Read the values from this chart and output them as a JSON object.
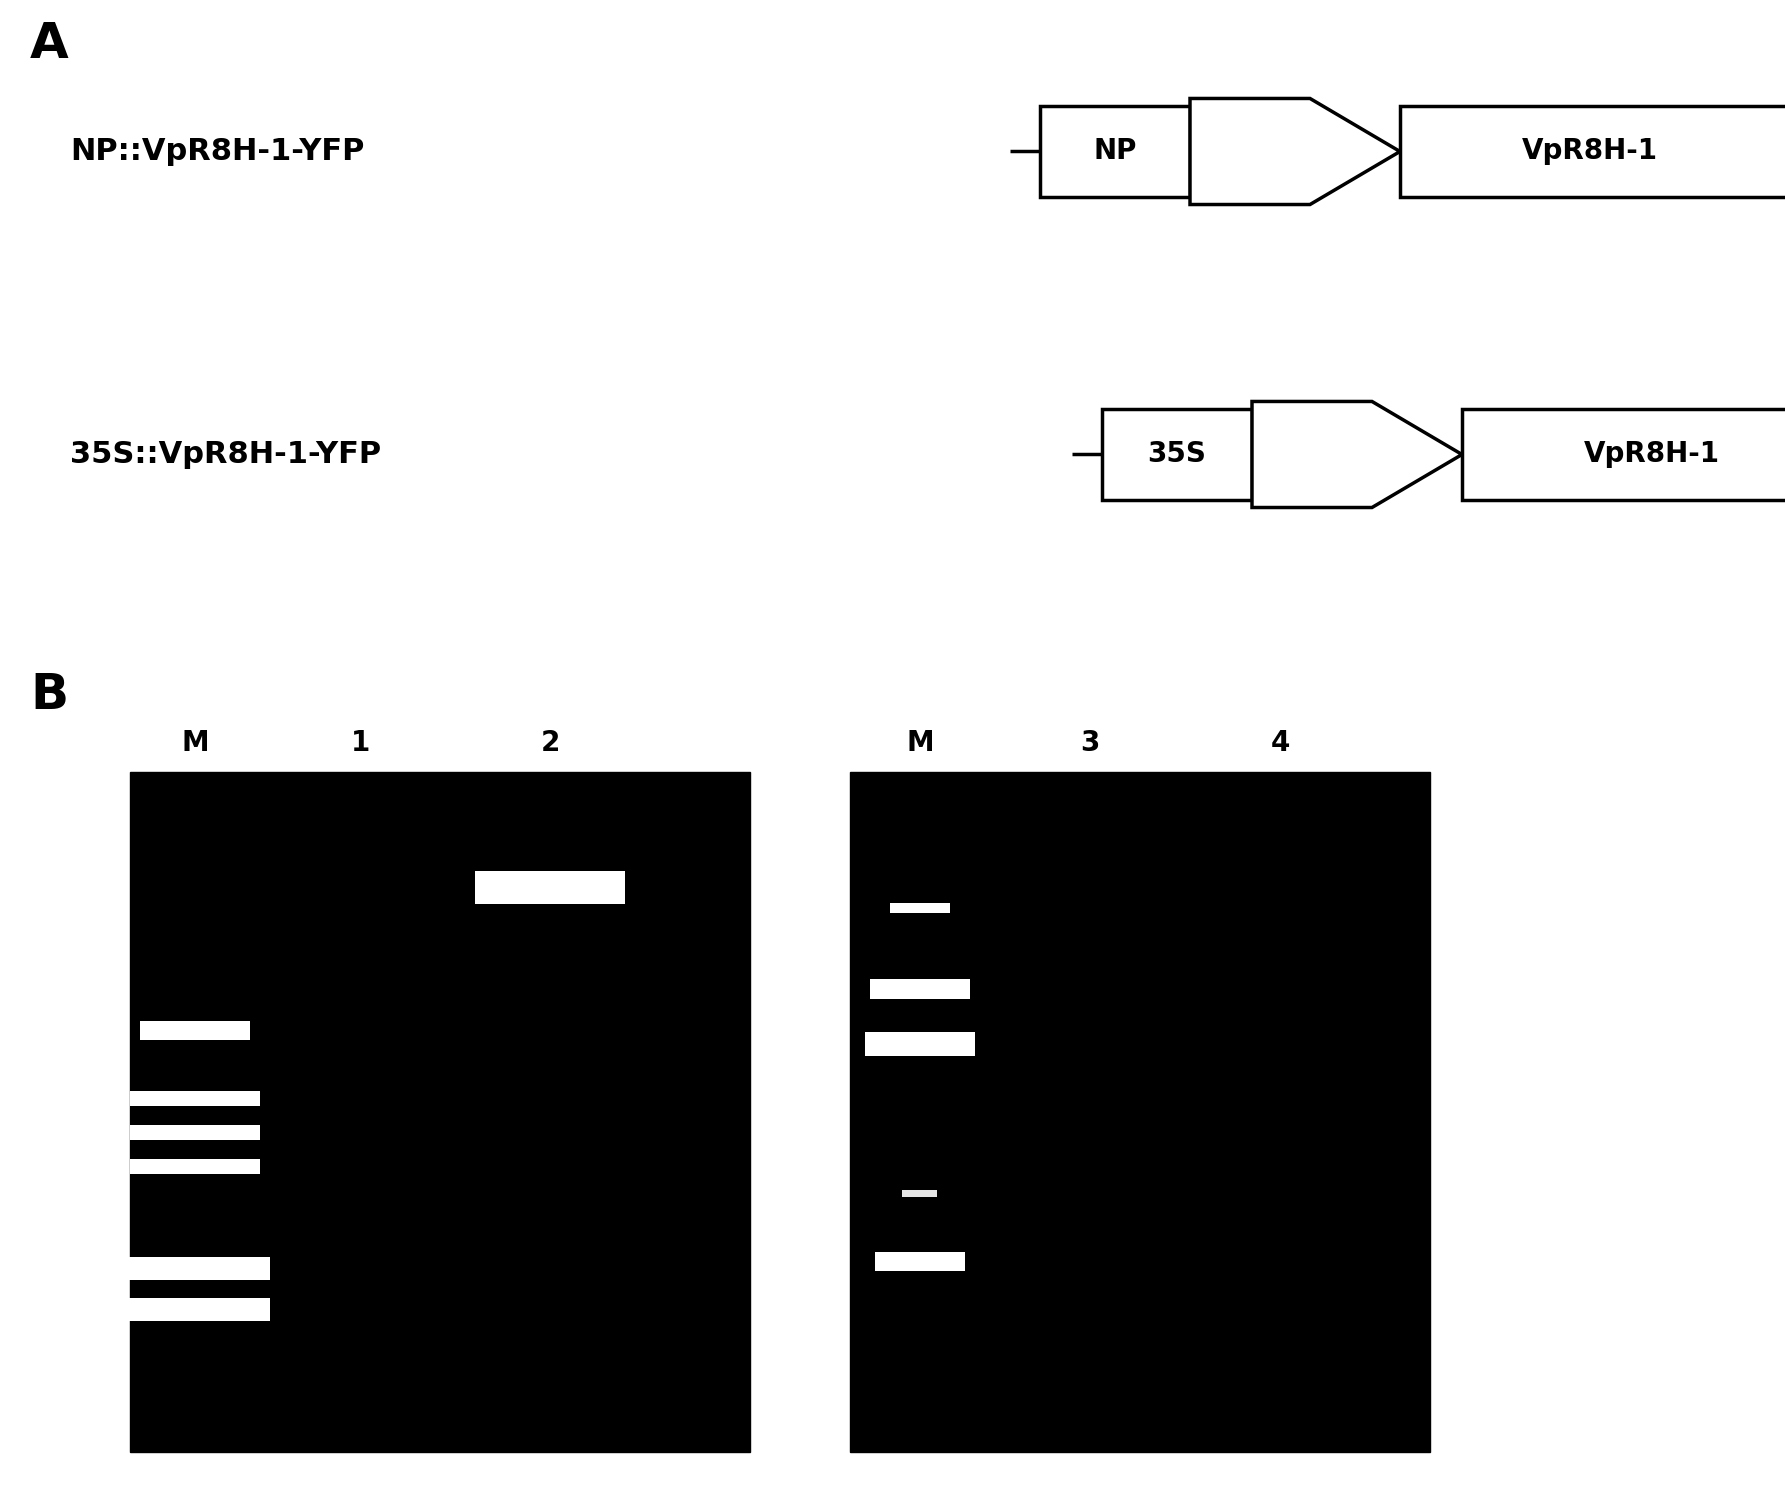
{
  "panel_a_label": "A",
  "panel_b_label": "B",
  "construct1_label": "NP::VpR8H-1-YFP",
  "construct2_label": "35S::VpR8H-1-YFP",
  "construct1_promoter": "NP",
  "construct2_promoter": "35S",
  "construct_gene": "VpR8H-1",
  "background_color": "#ffffff",
  "gel1_lanes": [
    "M",
    "1",
    "2"
  ],
  "gel2_lanes": [
    "M",
    "3",
    "4"
  ],
  "gel_bg": "#000000",
  "band_color": "#ffffff"
}
